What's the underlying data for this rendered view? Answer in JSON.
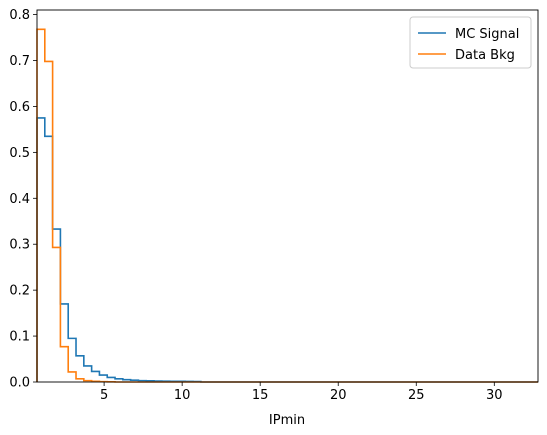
{
  "chart_data": {
    "type": "line",
    "drawstyle": "step-histogram",
    "xlabel": "IPmin",
    "ylabel": "",
    "xlim": [
      0.7,
      32.8
    ],
    "ylim": [
      0,
      0.81
    ],
    "xticks": [
      5,
      10,
      15,
      20,
      25,
      30
    ],
    "yticks": [
      0.0,
      0.1,
      0.2,
      0.3,
      0.4,
      0.5,
      0.6,
      0.7,
      0.8
    ],
    "grid": false,
    "legend_position": "upper right",
    "series": [
      {
        "name": "MC Signal",
        "color": "#1f77b4",
        "bin_edges": [
          0.7,
          1.2,
          1.7,
          2.2,
          2.7,
          3.2,
          3.7,
          4.2,
          4.7,
          5.2,
          5.7,
          6.2,
          6.7,
          7.2,
          7.7,
          8.2,
          8.7,
          9.2,
          9.7,
          10.2,
          10.7,
          11.2,
          32.8
        ],
        "values": [
          0.575,
          0.535,
          0.333,
          0.17,
          0.095,
          0.057,
          0.035,
          0.023,
          0.015,
          0.01,
          0.007,
          0.005,
          0.004,
          0.003,
          0.0025,
          0.002,
          0.0018,
          0.0016,
          0.0014,
          0.0012,
          0.001,
          0.0
        ]
      },
      {
        "name": "Data Bkg",
        "color": "#ff7f0e",
        "bin_edges": [
          0.7,
          1.2,
          1.7,
          2.2,
          2.7,
          3.2,
          3.7,
          4.2,
          4.7,
          5.2,
          5.7,
          32.8
        ],
        "values": [
          0.768,
          0.698,
          0.293,
          0.077,
          0.022,
          0.007,
          0.003,
          0.0015,
          0.0008,
          0.0004,
          0.0
        ]
      }
    ]
  }
}
